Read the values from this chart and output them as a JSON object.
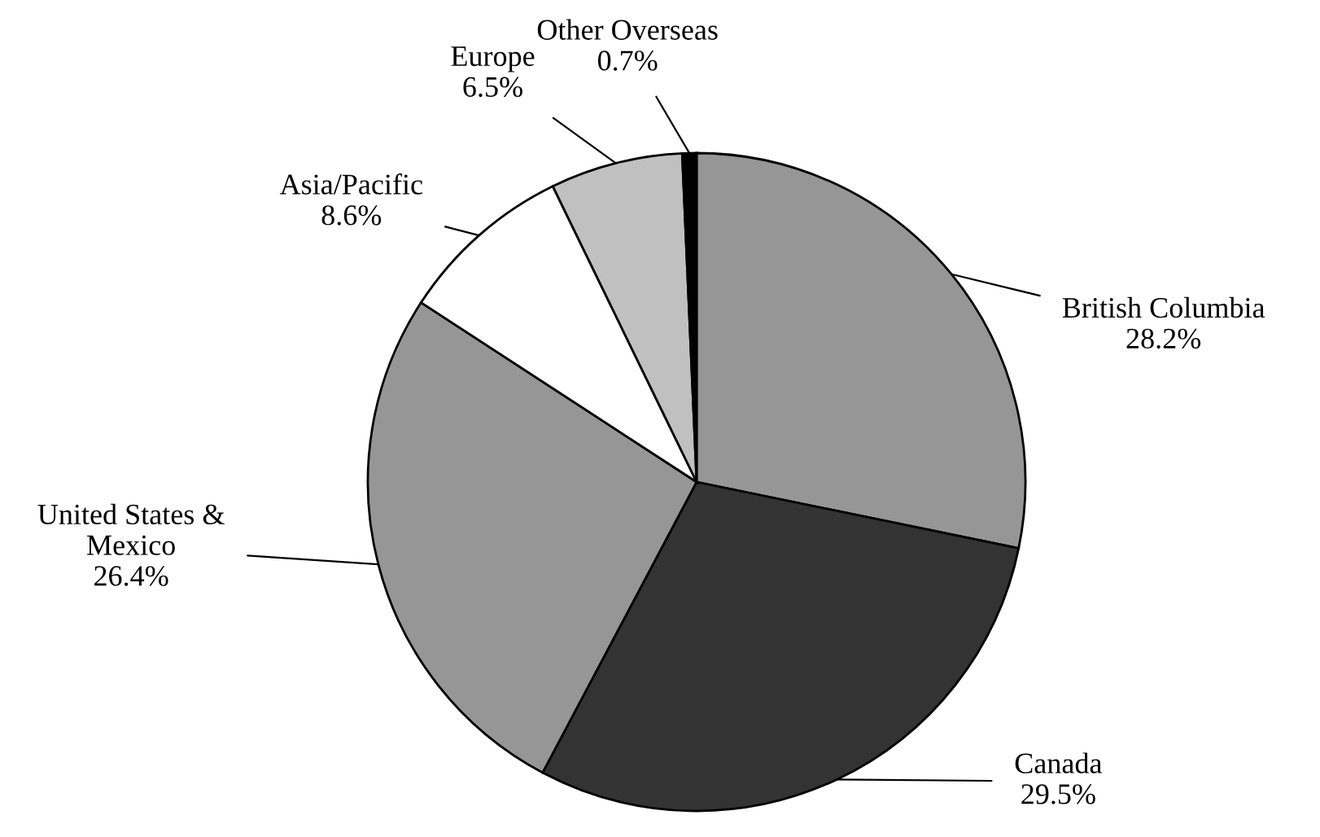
{
  "chart_data": {
    "type": "pie",
    "categories": [
      "British Columbia",
      "Canada",
      "United States &\nMexico",
      "Asia/Pacific",
      "Europe",
      "Other Overseas"
    ],
    "values": [
      28.2,
      29.5,
      26.4,
      8.6,
      6.5,
      0.7
    ],
    "value_labels": [
      "28.2%",
      "29.5%",
      "26.4%",
      "8.6%",
      "6.5%",
      "0.7%"
    ],
    "colors": [
      "#969696",
      "#333333",
      "#969696",
      "#ffffff",
      "#c0c0c0",
      "#000000"
    ],
    "legend": false
  }
}
